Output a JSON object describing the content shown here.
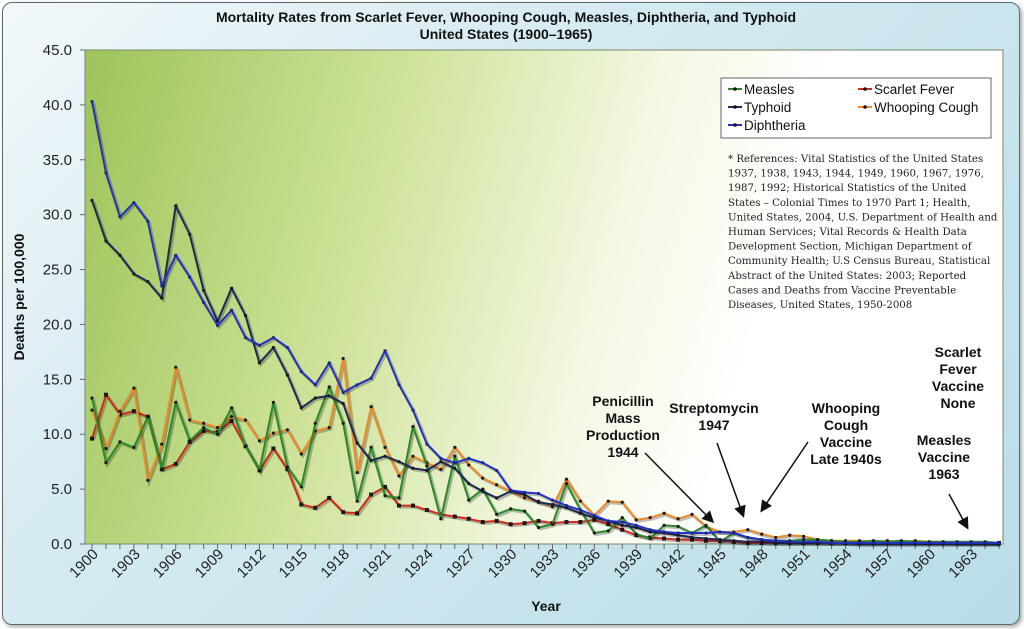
{
  "chart_data": {
    "type": "line",
    "title": "Mortality Rates from Scarlet Fever, Whooping Cough, Measles, Diphtheria, and Typhoid",
    "subtitle": "United States (1900–1965)",
    "xlabel": "Year",
    "ylabel": "Deaths per 100,000",
    "xlim": [
      1900,
      1965
    ],
    "ylim": [
      0,
      45
    ],
    "y_ticks": [
      "0.0",
      "5.0",
      "10.0",
      "15.0",
      "20.0",
      "25.0",
      "30.0",
      "35.0",
      "40.0",
      "45.0"
    ],
    "x_tick_labels": [
      "1900",
      "1903",
      "1906",
      "1909",
      "1912",
      "1915",
      "1918",
      "1921",
      "1924",
      "1927",
      "1930",
      "1933",
      "1936",
      "1939",
      "1942",
      "1945",
      "1948",
      "1951",
      "1954",
      "1957",
      "1960",
      "1963"
    ],
    "legend_position": "top-right",
    "series": [
      {
        "name": "Measles",
        "color": "#2a8a2a",
        "values": [
          13.3,
          7.4,
          9.3,
          8.8,
          11.6,
          6.8,
          12.9,
          9.4,
          10.6,
          10.0,
          12.4,
          8.9,
          6.7,
          12.9,
          7.0,
          5.2,
          11.0,
          14.3,
          11.0,
          3.9,
          8.8,
          4.4,
          4.2,
          10.7,
          7.1,
          2.3,
          8.0,
          4.0,
          5.0,
          2.7,
          3.2,
          3.0,
          1.5,
          1.8,
          5.5,
          3.1,
          1.0,
          1.2,
          2.4,
          0.9,
          0.5,
          1.7,
          1.6,
          1.0,
          1.7,
          0.2,
          1.0,
          0.6,
          0.4,
          0.3,
          0.3,
          0.4,
          0.4,
          0.3,
          0.2,
          0.2,
          0.3,
          0.2,
          0.3,
          0.2,
          0.2,
          0.2,
          0.2,
          0.2,
          0.2,
          0.1
        ]
      },
      {
        "name": "Scarlet Fever",
        "color": "#d42a1e",
        "values": [
          9.6,
          13.6,
          11.8,
          12.1,
          11.6,
          6.8,
          7.3,
          9.3,
          10.3,
          10.2,
          11.2,
          8.9,
          6.7,
          8.7,
          6.8,
          3.6,
          3.3,
          4.2,
          2.9,
          2.8,
          4.5,
          5.2,
          3.5,
          3.5,
          3.1,
          2.7,
          2.5,
          2.3,
          2.0,
          2.1,
          1.8,
          1.9,
          2.1,
          1.9,
          2.0,
          2.0,
          2.2,
          1.8,
          1.3,
          0.8,
          0.6,
          0.5,
          0.4,
          0.4,
          0.3,
          0.3,
          0.2,
          0.1,
          0.1,
          0.1,
          0.1,
          0.1,
          0.1,
          0.1,
          0.1,
          0.1,
          0.1,
          0.1,
          0.1,
          0.1,
          0.1,
          0.1,
          0.1,
          0.1,
          0.1,
          0.1
        ]
      },
      {
        "name": "Typhoid",
        "color": "#1e2a5a",
        "values": [
          31.3,
          27.6,
          26.3,
          24.6,
          23.9,
          22.4,
          30.8,
          28.2,
          23.1,
          20.3,
          23.3,
          20.8,
          16.5,
          17.9,
          15.4,
          12.4,
          13.3,
          13.5,
          12.8,
          9.2,
          7.6,
          8.0,
          7.5,
          6.9,
          6.7,
          7.5,
          6.9,
          5.5,
          4.8,
          4.2,
          4.8,
          4.5,
          3.8,
          3.6,
          3.3,
          2.8,
          2.4,
          2.1,
          1.7,
          1.5,
          1.1,
          1.0,
          0.8,
          0.6,
          0.5,
          0.4,
          0.3,
          0.2,
          0.2,
          0.1,
          0.1,
          0.1,
          0.1,
          0.1,
          0.1,
          0.0,
          0.0,
          0.0,
          0.0,
          0.0,
          0.0,
          0.0,
          0.0,
          0.0,
          0.0,
          0.0
        ]
      },
      {
        "name": "Whooping Cough",
        "color": "#f08a28",
        "values": [
          12.2,
          8.7,
          12.1,
          14.2,
          5.8,
          9.1,
          16.1,
          11.3,
          11.0,
          10.6,
          11.6,
          11.3,
          9.4,
          10.1,
          10.4,
          8.2,
          10.3,
          10.6,
          16.9,
          6.5,
          12.5,
          8.8,
          6.2,
          8.0,
          7.4,
          6.8,
          8.8,
          7.2,
          6.0,
          5.4,
          4.8,
          4.2,
          3.9,
          3.4,
          5.9,
          3.9,
          2.6,
          3.9,
          3.8,
          2.2,
          2.4,
          2.8,
          2.3,
          2.7,
          1.6,
          1.1,
          1.1,
          1.3,
          0.9,
          0.6,
          0.8,
          0.7,
          0.4,
          0.3,
          0.3,
          0.3,
          0.2,
          0.3,
          0.2,
          0.3,
          0.2,
          0.2,
          0.1,
          0.1,
          0.1,
          0.1
        ]
      },
      {
        "name": "Diphtheria",
        "color": "#2430c8",
        "values": [
          40.3,
          33.8,
          29.8,
          31.1,
          29.4,
          23.5,
          26.3,
          24.3,
          22.0,
          19.9,
          21.3,
          18.8,
          18.1,
          18.8,
          17.9,
          15.7,
          14.5,
          16.5,
          13.8,
          14.5,
          15.1,
          17.6,
          14.5,
          12.2,
          9.1,
          7.8,
          7.4,
          7.8,
          7.4,
          6.7,
          4.9,
          4.7,
          4.6,
          4.0,
          3.5,
          3.1,
          2.6,
          2.1,
          2.0,
          1.7,
          1.3,
          1.1,
          1.0,
          1.0,
          1.0,
          1.1,
          1.0,
          0.6,
          0.4,
          0.3,
          0.2,
          0.2,
          0.2,
          0.1,
          0.1,
          0.1,
          0.1,
          0.1,
          0.1,
          0.1,
          0.1,
          0.1,
          0.1,
          0.1,
          0.1,
          0.1
        ]
      }
    ],
    "annotations": [
      {
        "lines": [
          "Penicillin",
          "Mass",
          "Production",
          "1944"
        ]
      },
      {
        "lines": [
          "Streptomycin",
          "1947"
        ]
      },
      {
        "lines": [
          "Whooping",
          "Cough",
          "Vaccine",
          "Late 1940s"
        ]
      },
      {
        "lines": [
          "Scarlet",
          "Fever",
          "Vaccine",
          "None"
        ]
      },
      {
        "lines": [
          "Measles",
          "Vaccine",
          "1963"
        ]
      }
    ],
    "references": [
      "* References: Vital Statistics of the United States",
      "1937, 1938, 1943, 1944, 1949, 1960, 1967, 1976,",
      "1987, 1992; Historical Statistics of the United",
      "States – Colonial Times to 1970 Part 1; Health,",
      "United States, 2004, U.S. Department of Health and",
      "Human Services; Vital Records & Health Data",
      "Development Section, Michigan Department of",
      "Community Health; U.S Census Bureau, Statistical",
      "Abstract of the United States: 2003; Reported",
      "Cases and Deaths from Vaccine Preventable",
      "Diseases, United States, 1950-2008"
    ]
  }
}
